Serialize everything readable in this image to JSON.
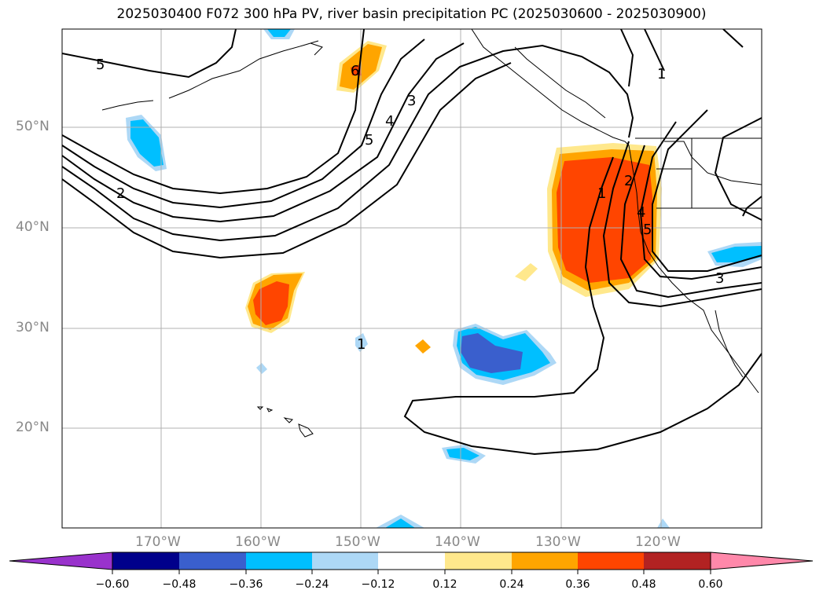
{
  "title": "2025030400 F072 300 hPa PV, river basin precipitation PC (2025030600 - 2025030900)",
  "lat_labels": [
    "50°N",
    "40°N",
    "30°N",
    "20°N"
  ],
  "lon_labels": [
    "170°W",
    "160°W",
    "150°W",
    "140°W",
    "130°W",
    "120°W"
  ],
  "contour_labels": [
    "5",
    "6",
    "3",
    "4",
    "5",
    "2",
    "1",
    "1",
    "2",
    "4",
    "5",
    "3",
    "1"
  ],
  "colorbar": {
    "ticks": [
      "−0.60",
      "−0.48",
      "−0.36",
      "−0.24",
      "−0.12",
      "0.12",
      "0.24",
      "0.36",
      "0.48",
      "0.60"
    ],
    "colors": [
      "#9932cc",
      "#00008b",
      "#3a5fcd",
      "#00bfff",
      "#add8f6",
      "#ffffff",
      "#ffe88c",
      "#ffa500",
      "#ff4500",
      "#b22222",
      "#ff88aa"
    ]
  },
  "colors": {
    "pos_light": "#ffe88c",
    "pos_mid": "#ffa500",
    "pos_strong": "#ff4500",
    "neg_light": "#add8f6",
    "neg_mid": "#00bfff",
    "neg_strong": "#3a5fcd",
    "grid": "#b0b0b0"
  }
}
